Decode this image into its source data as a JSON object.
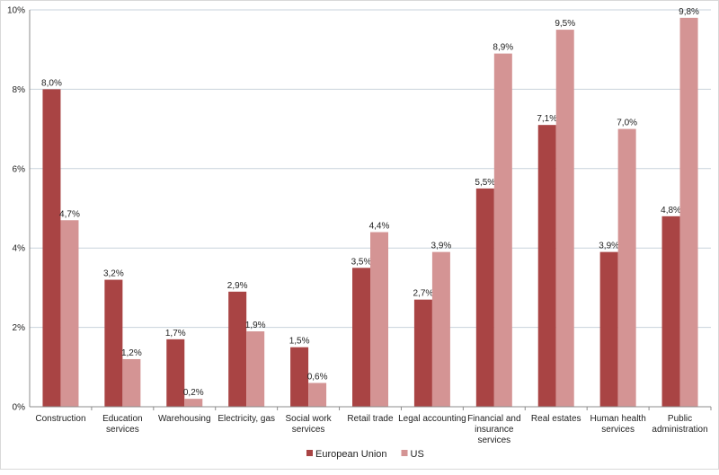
{
  "chart_data": {
    "type": "bar",
    "categories": [
      [
        "Construction"
      ],
      [
        "Education",
        "services"
      ],
      [
        "Warehousing"
      ],
      [
        "Electricity, gas"
      ],
      [
        "Social work",
        "services"
      ],
      [
        "Retail trade"
      ],
      [
        "Legal accounting"
      ],
      [
        "Financial and",
        "insurance",
        "services"
      ],
      [
        "Real estates"
      ],
      [
        "Human health",
        "services"
      ],
      [
        "Public",
        "administration"
      ]
    ],
    "series": [
      {
        "name": "European Union",
        "color": "#a94444",
        "values": [
          8.0,
          3.2,
          1.7,
          2.9,
          1.5,
          3.5,
          2.7,
          5.5,
          7.1,
          3.9,
          4.8
        ],
        "labels": [
          "8,0%",
          "3,2%",
          "1,7%",
          "2,9%",
          "1,5%",
          "3,5%",
          "2,7%",
          "5,5%",
          "7,1%",
          "3,9%",
          "4,8%"
        ]
      },
      {
        "name": "US",
        "color": "#d49494",
        "values": [
          4.7,
          1.2,
          0.2,
          1.9,
          0.6,
          4.4,
          3.9,
          8.9,
          9.5,
          7.0,
          9.8
        ],
        "labels": [
          "4,7%",
          "1,2%",
          "0,2%",
          "1,9%",
          "0,6%",
          "4,4%",
          "3,9%",
          "8,9%",
          "9,5%",
          "7,0%",
          "9,8%"
        ]
      }
    ],
    "yticks": [
      0,
      2,
      4,
      6,
      8,
      10
    ],
    "ytick_labels": [
      "0%",
      "2%",
      "4%",
      "6%",
      "8%",
      "10%"
    ],
    "ylim": [
      0,
      10
    ],
    "grid": true,
    "legend_position": "bottom"
  }
}
